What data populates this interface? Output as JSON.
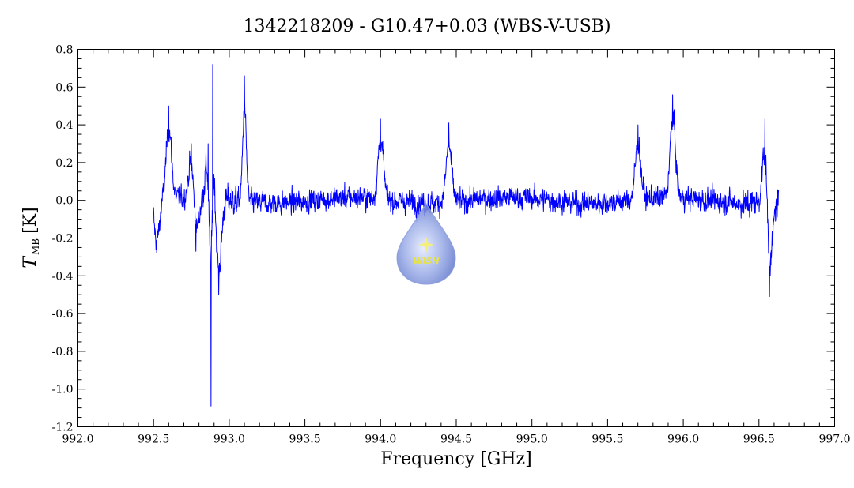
{
  "chart_data": {
    "type": "line",
    "title": "1342218209 - G10.47+0.03 (WBS-V-USB)",
    "xlabel": "Frequency [GHz]",
    "ylabel_main": "T",
    "ylabel_sub": "MB",
    "ylabel_unit": "[K]",
    "xlim": [
      992.0,
      997.0
    ],
    "ylim": [
      -1.2,
      0.8
    ],
    "x_ticks": [
      992.0,
      992.5,
      993.0,
      993.5,
      994.0,
      994.5,
      995.0,
      995.5,
      996.0,
      996.5,
      997.0
    ],
    "x_tick_labels": [
      "992.0",
      "992.5",
      "993.0",
      "993.5",
      "994.0",
      "994.5",
      "995.0",
      "995.5",
      "996.0",
      "996.5",
      "997.0"
    ],
    "y_ticks": [
      -1.2,
      -1.0,
      -0.8,
      -0.6,
      -0.4,
      -0.2,
      0.0,
      0.2,
      0.4,
      0.6,
      0.8
    ],
    "y_tick_labels": [
      "-1.2",
      "-1.0",
      "-0.8",
      "-0.6",
      "-0.4",
      "-0.2",
      "0.0",
      "0.2",
      "0.4",
      "0.6",
      "0.8"
    ],
    "series": [
      {
        "color": "#0000ff",
        "x_range": [
          992.5,
          996.63
        ],
        "noise_rms": 0.06,
        "features": [
          {
            "x": 992.52,
            "y": -0.28
          },
          {
            "x": 992.6,
            "y": 0.5
          },
          {
            "x": 992.75,
            "y": 0.3
          },
          {
            "x": 992.78,
            "y": -0.27
          },
          {
            "x": 992.86,
            "y": 0.3
          },
          {
            "x": 992.88,
            "y": -1.09
          },
          {
            "x": 992.89,
            "y": 0.72
          },
          {
            "x": 992.93,
            "y": -0.5
          },
          {
            "x": 993.1,
            "y": 0.66
          },
          {
            "x": 994.0,
            "y": 0.43
          },
          {
            "x": 994.45,
            "y": 0.41
          },
          {
            "x": 995.7,
            "y": 0.4
          },
          {
            "x": 995.93,
            "y": 0.56
          },
          {
            "x": 996.54,
            "y": 0.43
          },
          {
            "x": 996.57,
            "y": -0.51
          }
        ]
      }
    ]
  },
  "watermark": {
    "text": "WISH",
    "icon": "star-icon"
  }
}
